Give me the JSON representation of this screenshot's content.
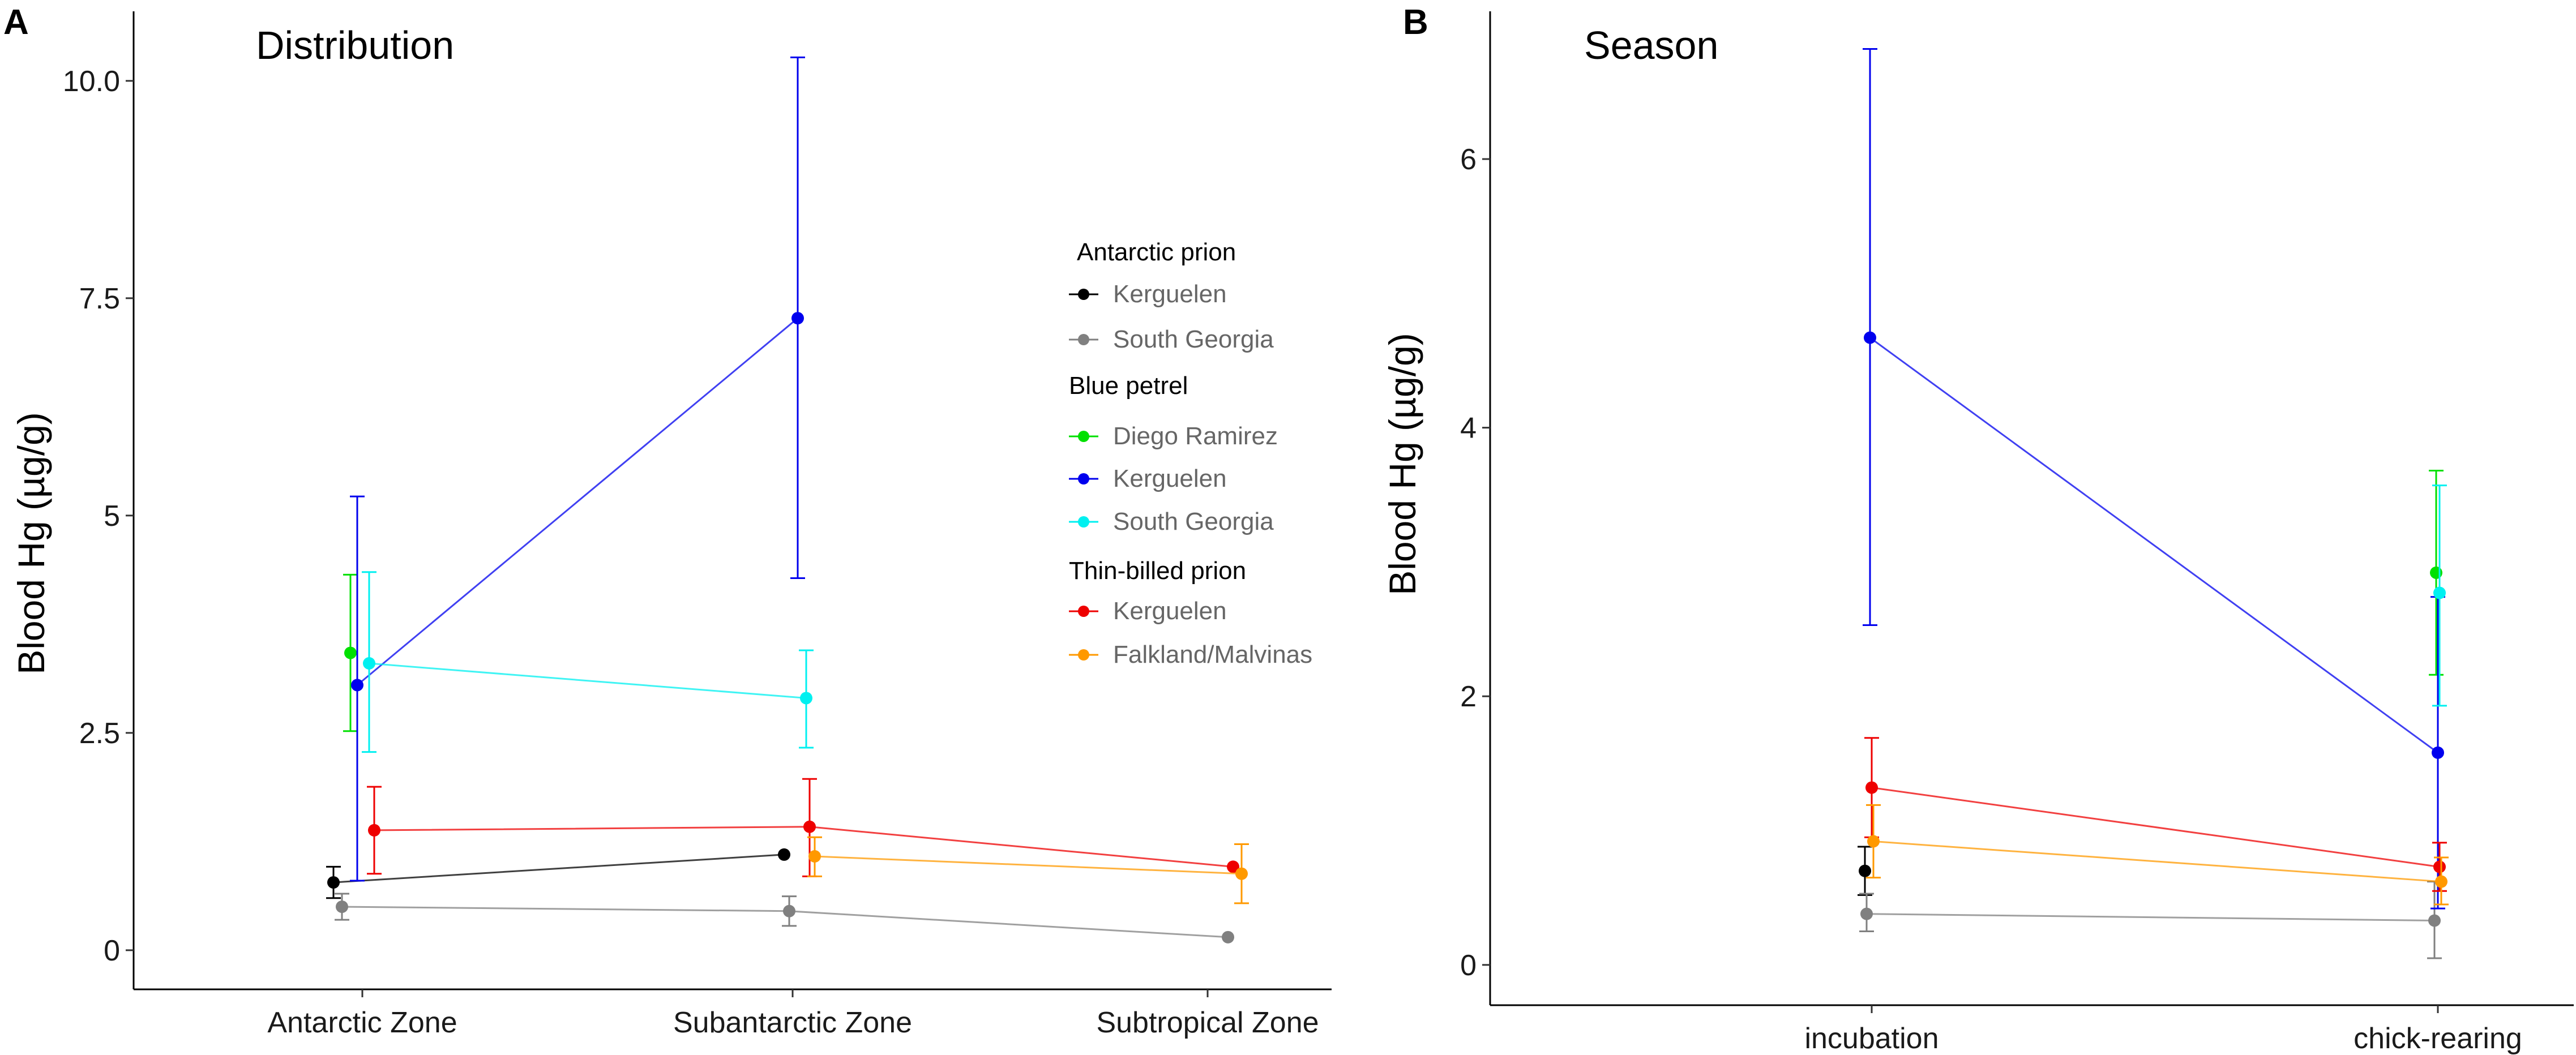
{
  "panels": [
    {
      "letter": "A",
      "title": "Distribution",
      "ylabel": "Blood Hg (µg/g)",
      "ylim": [
        -0.45,
        10.8
      ],
      "yticks": [
        0,
        2.5,
        5,
        7.5,
        10
      ],
      "ytick_labels": [
        "0",
        "2.5",
        "5",
        "7.5",
        "10.0"
      ],
      "categories": [
        "Antarctic Zone",
        "Subantarctic Zone",
        "Subtropical Zone"
      ]
    },
    {
      "letter": "B",
      "title": "Season",
      "ylabel": "Blood Hg (µg/g)",
      "ylim": [
        -0.3,
        7.1
      ],
      "yticks": [
        0,
        2,
        4,
        6
      ],
      "ytick_labels": [
        "0",
        "2",
        "4",
        "6"
      ],
      "categories": [
        "incubation",
        "chick-rearing"
      ]
    }
  ],
  "legend": {
    "groups": [
      {
        "title": "Antarctic prion",
        "items": [
          {
            "name": "Kerguelen",
            "color": "#000000"
          },
          {
            "name": "South Georgia",
            "color": "#808080"
          }
        ]
      },
      {
        "title": "Blue petrel",
        "items": [
          {
            "name": "Diego Ramirez",
            "color": "#00e000"
          },
          {
            "name": "Kerguelen",
            "color": "#0000ee"
          },
          {
            "name": "South Georgia",
            "color": "#00f0f0"
          }
        ]
      },
      {
        "title": "Thin-billed prion",
        "items": [
          {
            "name": "Kerguelen",
            "color": "#ee0000"
          },
          {
            "name": "Falkland/Malvinas",
            "color": "#ff9900"
          }
        ]
      }
    ]
  },
  "chart_data": [
    {
      "type": "line",
      "title": "Distribution",
      "xlabel": "",
      "ylabel": "Blood Hg (µg/g)",
      "categories": [
        "Antarctic Zone",
        "Subantarctic Zone",
        "Subtropical Zone"
      ],
      "ylim": [
        -0.45,
        10.8
      ],
      "series": [
        {
          "name": "Antarctic prion - Kerguelen",
          "color": "#000000",
          "points": [
            {
              "cat": 0,
              "off": -0.17,
              "y": 0.78,
              "lo": 0.6,
              "hi": 0.96
            },
            {
              "cat": 1,
              "off": -0.05,
              "y": 1.1,
              "lo": 1.1,
              "hi": 1.1
            }
          ]
        },
        {
          "name": "Antarctic prion - South Georgia",
          "color": "#808080",
          "points": [
            {
              "cat": 0,
              "off": -0.12,
              "y": 0.5,
              "lo": 0.35,
              "hi": 0.65
            },
            {
              "cat": 1,
              "off": -0.02,
              "y": 0.45,
              "lo": 0.28,
              "hi": 0.62
            },
            {
              "cat": 2,
              "off": 0.12,
              "y": 0.15,
              "lo": 0.15,
              "hi": 0.15
            }
          ]
        },
        {
          "name": "Blue petrel - Diego Ramirez",
          "color": "#00e000",
          "points": [
            {
              "cat": 0,
              "off": -0.07,
              "y": 3.42,
              "lo": 2.52,
              "hi": 4.32
            }
          ]
        },
        {
          "name": "Blue petrel - Kerguelen",
          "color": "#0000ee",
          "points": [
            {
              "cat": 0,
              "off": -0.03,
              "y": 3.05,
              "lo": 0.8,
              "hi": 5.22
            },
            {
              "cat": 1,
              "off": 0.03,
              "y": 7.27,
              "lo": 4.28,
              "hi": 10.27
            }
          ]
        },
        {
          "name": "Blue petrel - South Georgia",
          "color": "#00f0f0",
          "points": [
            {
              "cat": 0,
              "off": 0.04,
              "y": 3.3,
              "lo": 2.28,
              "hi": 4.35
            },
            {
              "cat": 1,
              "off": 0.08,
              "y": 2.9,
              "lo": 2.33,
              "hi": 3.45
            }
          ]
        },
        {
          "name": "Thin-billed prion - Kerguelen",
          "color": "#ee0000",
          "points": [
            {
              "cat": 0,
              "off": 0.07,
              "y": 1.38,
              "lo": 0.88,
              "hi": 1.88
            },
            {
              "cat": 1,
              "off": 0.1,
              "y": 1.42,
              "lo": 0.85,
              "hi": 1.97
            },
            {
              "cat": 2,
              "off": 0.15,
              "y": 0.96,
              "lo": 0.96,
              "hi": 0.96
            }
          ]
        },
        {
          "name": "Thin-billed prion - Falkland/Malvinas",
          "color": "#ff9900",
          "points": [
            {
              "cat": 1,
              "off": 0.13,
              "y": 1.08,
              "lo": 0.85,
              "hi": 1.3
            },
            {
              "cat": 2,
              "off": 0.2,
              "y": 0.88,
              "lo": 0.54,
              "hi": 1.22
            }
          ]
        }
      ]
    },
    {
      "type": "line",
      "title": "Season",
      "xlabel": "",
      "ylabel": "Blood Hg (µg/g)",
      "categories": [
        "incubation",
        "chick-rearing"
      ],
      "ylim": [
        -0.3,
        7.1
      ],
      "series": [
        {
          "name": "Antarctic prion - Kerguelen",
          "color": "#000000",
          "points": [
            {
              "cat": 0,
              "off": -0.04,
              "y": 0.7,
              "lo": 0.52,
              "hi": 0.88
            }
          ]
        },
        {
          "name": "Antarctic prion - South Georgia",
          "color": "#808080",
          "points": [
            {
              "cat": 0,
              "off": -0.03,
              "y": 0.38,
              "lo": 0.25,
              "hi": 0.53
            },
            {
              "cat": 1,
              "off": -0.02,
              "y": 0.33,
              "lo": 0.05,
              "hi": 0.62
            }
          ]
        },
        {
          "name": "Blue petrel - Diego Ramirez",
          "color": "#00e000",
          "points": [
            {
              "cat": 1,
              "off": -0.01,
              "y": 2.92,
              "lo": 2.16,
              "hi": 3.68
            }
          ]
        },
        {
          "name": "Blue petrel - Kerguelen",
          "color": "#0000ee",
          "points": [
            {
              "cat": 0,
              "off": -0.01,
              "y": 4.67,
              "lo": 2.53,
              "hi": 6.82
            },
            {
              "cat": 1,
              "off": 0,
              "y": 1.58,
              "lo": 0.42,
              "hi": 2.74
            }
          ]
        },
        {
          "name": "Blue petrel - South Georgia",
          "color": "#00f0f0",
          "points": [
            {
              "cat": 1,
              "off": 0.01,
              "y": 2.77,
              "lo": 1.93,
              "hi": 3.57
            }
          ]
        },
        {
          "name": "Thin-billed prion - Kerguelen",
          "color": "#ee0000",
          "points": [
            {
              "cat": 0,
              "off": 0,
              "y": 1.32,
              "lo": 0.95,
              "hi": 1.69
            },
            {
              "cat": 1,
              "off": 0.01,
              "y": 0.73,
              "lo": 0.55,
              "hi": 0.91
            }
          ]
        },
        {
          "name": "Thin-billed prion - Falkland/Malvinas",
          "color": "#ff9900",
          "points": [
            {
              "cat": 0,
              "off": 0.01,
              "y": 0.92,
              "lo": 0.65,
              "hi": 1.19
            },
            {
              "cat": 1,
              "off": 0.02,
              "y": 0.62,
              "lo": 0.45,
              "hi": 0.8
            }
          ]
        }
      ]
    }
  ]
}
